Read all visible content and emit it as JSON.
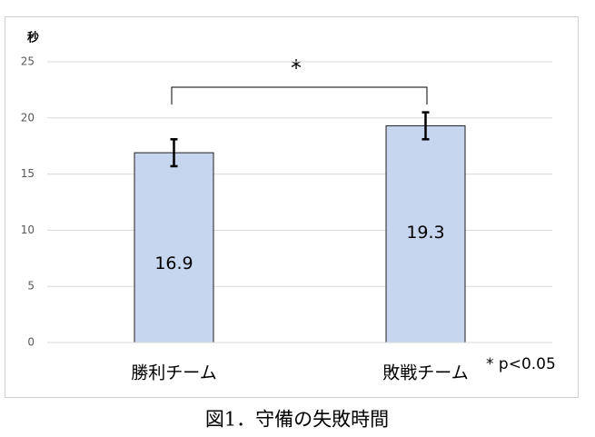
{
  "chart_data": {
    "type": "bar",
    "y_label": "秒",
    "annotation": "*",
    "footnote": "* p<0.05",
    "caption": "図1．守備の失敗時間",
    "categories": [
      "勝利チーム",
      "敗戦チーム"
    ],
    "values": [
      16.9,
      19.3
    ],
    "errors": [
      1.2,
      1.2
    ],
    "color": "#c5d6ee",
    "ylim": [
      0,
      25
    ],
    "yticks": [
      0,
      5,
      10,
      15,
      20,
      25
    ],
    "grid": true
  }
}
